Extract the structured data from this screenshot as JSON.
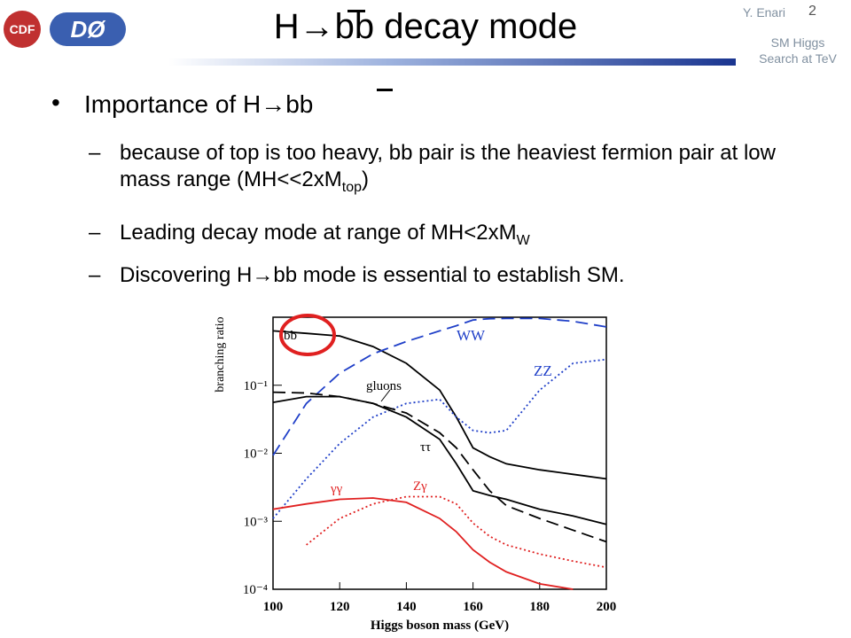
{
  "header": {
    "title": "H→bb decay mode",
    "author": "Y. Enari",
    "page": "2",
    "talk_line1": "SM Higgs",
    "talk_line2": "Search at TeV",
    "logo_left": "CDF",
    "logo_right": "DØ"
  },
  "bullets": {
    "main": "Importance of H→bb",
    "subs": [
      {
        "parts": [
          "because of top is too heavy, bb pair is the heaviest fermion pair at low mass range (MH<<2xM",
          "top",
          ")"
        ]
      },
      {
        "parts": [
          "Leading decay mode at range of MH<2xM",
          "W"
        ]
      },
      {
        "parts": [
          "Discovering H→bb mode is essential to establish SM."
        ]
      }
    ]
  },
  "chart_data": {
    "type": "line",
    "xlabel": "Higgs boson mass (GeV)",
    "ylabel": "branching ratio",
    "log_y": true,
    "x": [
      100,
      110,
      120,
      130,
      140,
      150,
      155,
      160,
      165,
      170,
      180,
      190,
      200
    ],
    "xlim": [
      100,
      200
    ],
    "xticks": [
      100,
      120,
      140,
      160,
      180,
      200
    ],
    "ylim": [
      0.0001,
      1
    ],
    "yticks": [
      {
        "value": 0.0001,
        "label": "10⁻⁴"
      },
      {
        "value": 0.001,
        "label": "10⁻³"
      },
      {
        "value": 0.01,
        "label": "10⁻²"
      },
      {
        "value": 0.1,
        "label": "10⁻¹"
      }
    ],
    "series": [
      {
        "name": "bb",
        "color": "#000000",
        "dash": "solid",
        "values": [
          0.63,
          0.58,
          0.53,
          0.37,
          0.21,
          0.085,
          0.034,
          0.012,
          0.0089,
          0.007,
          0.0057,
          0.0049,
          0.0042
        ]
      },
      {
        "name": "WW",
        "color": "#1f3fc8",
        "dash": "dashed",
        "values": [
          0.0093,
          0.054,
          0.15,
          0.29,
          0.44,
          0.63,
          0.75,
          0.91,
          0.95,
          0.96,
          0.96,
          0.87,
          0.72
        ]
      },
      {
        "name": "ZZ",
        "color": "#1f3fc8",
        "dash": "dotted",
        "values": [
          0.0011,
          0.0042,
          0.0139,
          0.034,
          0.054,
          0.062,
          0.034,
          0.0216,
          0.02,
          0.0216,
          0.085,
          0.21,
          0.24
        ]
      },
      {
        "name": "gluons",
        "color": "#000000",
        "dash": "solid",
        "values": [
          0.056,
          0.068,
          0.068,
          0.054,
          0.034,
          0.016,
          0.007,
          0.0028,
          0.0024,
          0.0021,
          0.0015,
          0.0012,
          0.0009
        ]
      },
      {
        "name": "ττ",
        "color": "#000000",
        "dash": "dashed",
        "values": [
          0.079,
          0.077,
          0.068,
          0.054,
          0.039,
          0.02,
          0.012,
          0.0057,
          0.0028,
          0.0017,
          0.0011,
          0.00074,
          0.0005
        ]
      },
      {
        "name": "γγ",
        "color": "#e02020",
        "dash": "solid",
        "values": [
          0.0015,
          0.0018,
          0.0021,
          0.0022,
          0.0019,
          0.0011,
          0.0007,
          0.00038,
          0.00025,
          0.00018,
          0.00012,
          0.0001,
          null
        ]
      },
      {
        "name": "Zγ",
        "color": "#e02020",
        "dash": "dotted",
        "values": [
          null,
          0.00045,
          0.0011,
          0.0018,
          0.0023,
          0.0023,
          0.0018,
          0.00094,
          0.0006,
          0.00045,
          0.00033,
          0.00026,
          0.00021
        ]
      }
    ]
  }
}
